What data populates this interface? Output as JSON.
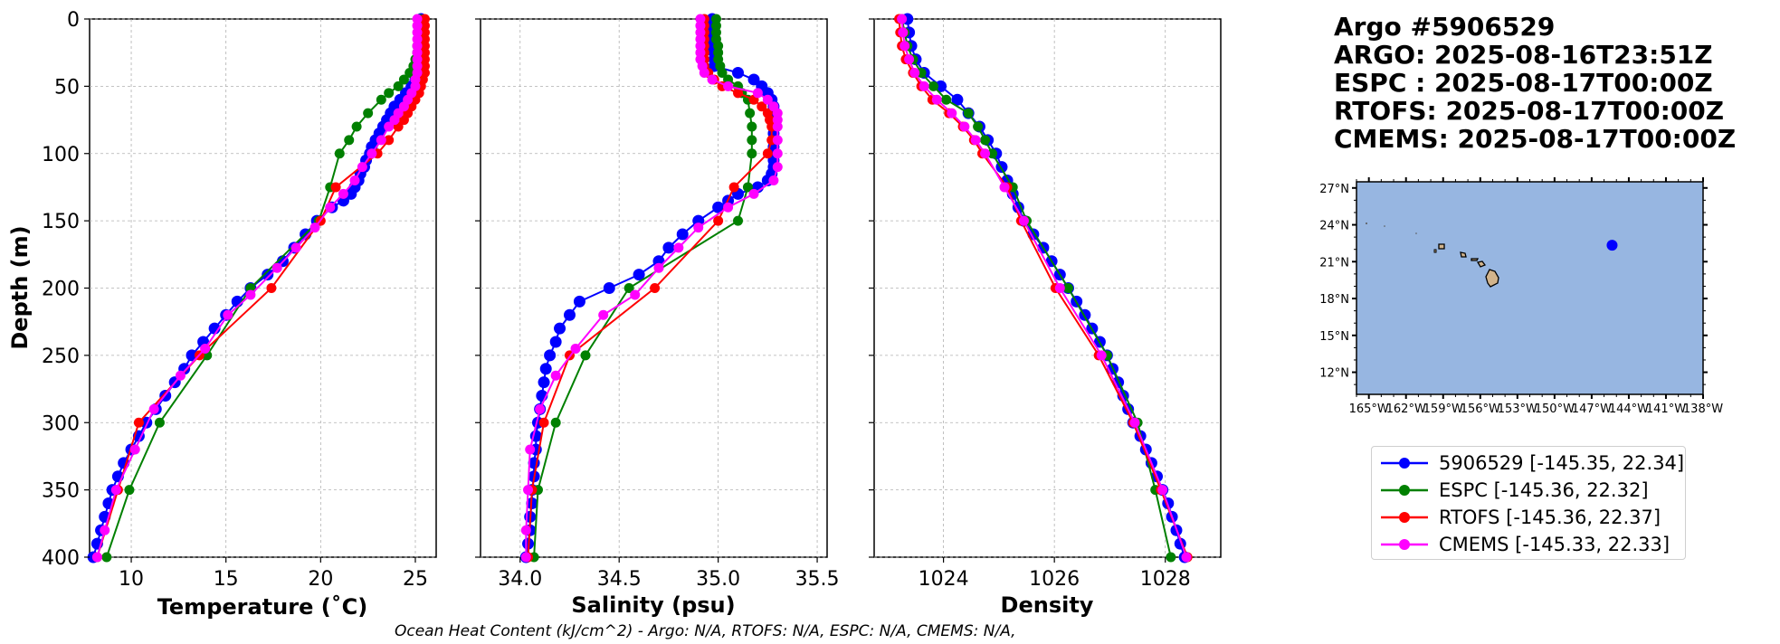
{
  "header": {
    "float_title": "Argo #5906529",
    "argo_time": "ARGO: 2025-08-16T23:51Z",
    "espc_time": "ESPC : 2025-08-17T00:00Z",
    "rtofs_time": "RTOFS: 2025-08-17T00:00Z",
    "cmems_time": "CMEMS: 2025-08-17T00:00Z"
  },
  "footer": "Ocean Heat Content (kJ/cm^2) - Argo: N/A,  RTOFS: N/A,  ESPC: N/A,  CMEMS: N/A,",
  "legend": [
    {
      "label": "5906529 [-145.35, 22.34]",
      "color": "#0000ff"
    },
    {
      "label": "ESPC [-145.36, 22.32]",
      "color": "#008000"
    },
    {
      "label": "RTOFS [-145.36, 22.37]",
      "color": "#ff0000"
    },
    {
      "label": "CMEMS [-145.33, 22.33]",
      "color": "#ff00ff"
    }
  ],
  "colors": {
    "argo": "#0000ff",
    "espc": "#008000",
    "rtofs": "#ff0000",
    "cmems": "#ff00ff",
    "ocean": "#97b6e1",
    "land": "#d2b48c",
    "grid": "#b0b0b0"
  },
  "chart_data": [
    {
      "type": "line",
      "xlabel": "Temperature (˚C)",
      "ylabel": "Depth (m)",
      "xlim": [
        7.8,
        26.1
      ],
      "ylim": [
        400,
        0
      ],
      "xticks": [
        10,
        15,
        20,
        25
      ],
      "yticks": [
        0,
        50,
        100,
        150,
        200,
        250,
        300,
        350,
        400
      ],
      "grid": true,
      "series": [
        {
          "name": "5906529",
          "depth": [
            0,
            5,
            10,
            15,
            20,
            25,
            30,
            35,
            40,
            45,
            50,
            55,
            60,
            65,
            70,
            75,
            80,
            85,
            90,
            95,
            100,
            105,
            110,
            115,
            120,
            125,
            130,
            135,
            140,
            150,
            160,
            170,
            180,
            190,
            200,
            210,
            220,
            230,
            240,
            250,
            260,
            270,
            280,
            290,
            300,
            310,
            320,
            330,
            340,
            350,
            360,
            370,
            380,
            390,
            400
          ],
          "values": [
            25.3,
            25.3,
            25.3,
            25.3,
            25.3,
            25.2,
            25.2,
            25.2,
            25.1,
            25.0,
            24.8,
            24.5,
            24.2,
            23.9,
            23.7,
            23.5,
            23.3,
            23.1,
            22.9,
            22.7,
            22.6,
            22.4,
            22.3,
            22.1,
            22.0,
            21.8,
            21.6,
            21.2,
            20.6,
            19.8,
            19.2,
            18.6,
            18.0,
            17.2,
            16.3,
            15.6,
            15.0,
            14.4,
            13.8,
            13.2,
            12.8,
            12.3,
            11.8,
            11.3,
            10.8,
            10.4,
            10.0,
            9.6,
            9.3,
            9.0,
            8.8,
            8.6,
            8.4,
            8.2,
            8.0
          ]
        },
        {
          "name": "ESPC",
          "depth": [
            0,
            5,
            10,
            15,
            20,
            25,
            30,
            35,
            40,
            45,
            50,
            55,
            60,
            70,
            80,
            90,
            100,
            125,
            150,
            200,
            250,
            300,
            350,
            400
          ],
          "values": [
            25.2,
            25.2,
            25.2,
            25.2,
            25.1,
            25.1,
            25.0,
            24.9,
            24.7,
            24.4,
            24.1,
            23.6,
            23.2,
            22.5,
            21.9,
            21.5,
            21.0,
            20.5,
            19.9,
            16.3,
            14.0,
            11.5,
            9.9,
            8.7
          ]
        },
        {
          "name": "RTOFS",
          "depth": [
            0,
            5,
            10,
            15,
            20,
            25,
            30,
            35,
            40,
            45,
            50,
            55,
            60,
            65,
            70,
            75,
            80,
            90,
            100,
            125,
            150,
            200,
            250,
            300,
            350,
            400
          ],
          "values": [
            25.5,
            25.5,
            25.5,
            25.5,
            25.5,
            25.5,
            25.5,
            25.5,
            25.5,
            25.4,
            25.3,
            25.2,
            25.0,
            24.8,
            24.6,
            24.4,
            24.1,
            23.6,
            23.0,
            20.8,
            20.0,
            17.4,
            13.6,
            10.4,
            9.3,
            8.2
          ]
        },
        {
          "name": "CMEMS",
          "depth": [
            0,
            5,
            10,
            15,
            20,
            25,
            30,
            35,
            40,
            45,
            50,
            55,
            60,
            65,
            70,
            75,
            80,
            90,
            100,
            110,
            120,
            130,
            140,
            155,
            170,
            185,
            205,
            220,
            245,
            265,
            290,
            320,
            350,
            380,
            400
          ],
          "values": [
            25.1,
            25.1,
            25.1,
            25.1,
            25.1,
            25.1,
            25.1,
            25.1,
            25.1,
            25.0,
            25.0,
            24.8,
            24.6,
            24.4,
            24.1,
            23.9,
            23.6,
            23.2,
            22.7,
            22.2,
            21.8,
            21.2,
            20.5,
            19.7,
            18.7,
            17.7,
            16.3,
            15.1,
            13.9,
            12.6,
            11.2,
            10.2,
            9.2,
            8.6,
            8.2
          ]
        }
      ]
    },
    {
      "type": "line",
      "xlabel": "Salinity (psu)",
      "xlim": [
        33.8,
        35.55
      ],
      "ylim": [
        400,
        0
      ],
      "xticks": [
        34.0,
        34.5,
        35.0,
        35.5
      ],
      "xticklabels": [
        "34.0",
        "34.5",
        "35.0",
        "35.5"
      ],
      "grid": true,
      "series": [
        {
          "name": "5906529",
          "depth": [
            0,
            5,
            10,
            15,
            20,
            25,
            30,
            35,
            40,
            45,
            50,
            55,
            60,
            65,
            70,
            75,
            80,
            85,
            90,
            95,
            100,
            105,
            110,
            115,
            120,
            125,
            130,
            135,
            140,
            150,
            160,
            170,
            180,
            190,
            200,
            210,
            220,
            230,
            240,
            250,
            260,
            270,
            280,
            290,
            300,
            310,
            320,
            330,
            340,
            350,
            360,
            370,
            380,
            390,
            400
          ],
          "values": [
            34.97,
            34.97,
            34.97,
            34.97,
            34.97,
            34.98,
            34.98,
            34.98,
            35.1,
            35.18,
            35.22,
            35.25,
            35.27,
            35.28,
            35.28,
            35.28,
            35.28,
            35.28,
            35.28,
            35.28,
            35.28,
            35.28,
            35.28,
            35.27,
            35.25,
            35.2,
            35.1,
            35.05,
            35.0,
            34.9,
            34.82,
            34.75,
            34.7,
            34.6,
            34.45,
            34.3,
            34.25,
            34.2,
            34.18,
            34.15,
            34.13,
            34.12,
            34.11,
            34.1,
            34.09,
            34.08,
            34.08,
            34.07,
            34.07,
            34.06,
            34.06,
            34.05,
            34.05,
            34.04,
            34.03
          ]
        },
        {
          "name": "ESPC",
          "depth": [
            0,
            5,
            10,
            15,
            20,
            25,
            30,
            35,
            40,
            45,
            50,
            55,
            60,
            70,
            80,
            90,
            100,
            125,
            150,
            200,
            250,
            300,
            350,
            400
          ],
          "values": [
            34.99,
            34.99,
            34.99,
            34.99,
            35.0,
            35.0,
            35.0,
            35.01,
            35.02,
            35.05,
            35.1,
            35.12,
            35.15,
            35.16,
            35.17,
            35.17,
            35.17,
            35.15,
            35.1,
            34.55,
            34.33,
            34.18,
            34.09,
            34.07
          ]
        },
        {
          "name": "RTOFS",
          "depth": [
            0,
            5,
            10,
            15,
            20,
            25,
            30,
            35,
            40,
            45,
            50,
            55,
            60,
            65,
            70,
            75,
            80,
            90,
            100,
            125,
            150,
            200,
            250,
            300,
            350,
            400
          ],
          "values": [
            34.93,
            34.93,
            34.93,
            34.93,
            34.93,
            34.93,
            34.93,
            34.93,
            34.95,
            34.98,
            35.02,
            35.1,
            35.18,
            35.22,
            35.25,
            35.26,
            35.27,
            35.27,
            35.25,
            35.08,
            35.0,
            34.68,
            34.25,
            34.12,
            34.06,
            34.04
          ]
        },
        {
          "name": "CMEMS",
          "depth": [
            0,
            5,
            10,
            15,
            20,
            25,
            30,
            35,
            40,
            45,
            50,
            55,
            60,
            65,
            70,
            75,
            80,
            90,
            100,
            110,
            120,
            130,
            140,
            155,
            170,
            185,
            205,
            220,
            245,
            265,
            290,
            320,
            350,
            380,
            400
          ],
          "values": [
            34.91,
            34.91,
            34.91,
            34.91,
            34.91,
            34.91,
            34.91,
            34.92,
            34.93,
            34.97,
            35.05,
            35.2,
            35.25,
            35.28,
            35.3,
            35.3,
            35.3,
            35.3,
            35.3,
            35.3,
            35.28,
            35.18,
            35.05,
            34.9,
            34.8,
            34.7,
            34.58,
            34.42,
            34.28,
            34.18,
            34.1,
            34.05,
            34.04,
            34.03,
            34.03
          ]
        }
      ]
    },
    {
      "type": "line",
      "xlabel": "Density",
      "xlim": [
        1022.75,
        1029.0
      ],
      "ylim": [
        400,
        0
      ],
      "xticks": [
        1024,
        1026,
        1028
      ],
      "grid": true,
      "series": [
        {
          "name": "5906529",
          "depth": [
            0,
            10,
            20,
            30,
            40,
            50,
            60,
            70,
            80,
            90,
            100,
            110,
            120,
            130,
            140,
            150,
            160,
            170,
            180,
            190,
            200,
            210,
            220,
            230,
            240,
            250,
            260,
            270,
            280,
            290,
            300,
            310,
            320,
            330,
            340,
            350,
            360,
            370,
            380,
            390,
            400
          ],
          "values": [
            1023.35,
            1023.38,
            1023.42,
            1023.5,
            1023.65,
            1023.95,
            1024.25,
            1024.45,
            1024.65,
            1024.8,
            1024.95,
            1025.05,
            1025.15,
            1025.25,
            1025.35,
            1025.45,
            1025.62,
            1025.8,
            1025.95,
            1026.1,
            1026.25,
            1026.4,
            1026.55,
            1026.68,
            1026.82,
            1026.95,
            1027.05,
            1027.15,
            1027.24,
            1027.33,
            1027.42,
            1027.55,
            1027.65,
            1027.75,
            1027.85,
            1027.95,
            1028.05,
            1028.12,
            1028.2,
            1028.27,
            1028.35
          ]
        },
        {
          "name": "ESPC",
          "depth": [
            0,
            10,
            20,
            30,
            40,
            50,
            60,
            70,
            80,
            90,
            100,
            125,
            150,
            200,
            250,
            300,
            350,
            400
          ],
          "values": [
            1023.25,
            1023.3,
            1023.35,
            1023.45,
            1023.6,
            1023.82,
            1024.05,
            1024.45,
            1024.62,
            1024.75,
            1024.88,
            1025.25,
            1025.5,
            1026.25,
            1026.95,
            1027.5,
            1027.82,
            1028.1
          ]
        },
        {
          "name": "RTOFS",
          "depth": [
            0,
            10,
            20,
            30,
            40,
            50,
            60,
            70,
            80,
            90,
            100,
            125,
            150,
            200,
            250,
            300,
            350,
            400
          ],
          "values": [
            1023.2,
            1023.22,
            1023.25,
            1023.32,
            1023.45,
            1023.6,
            1023.8,
            1024.1,
            1024.35,
            1024.55,
            1024.7,
            1025.15,
            1025.4,
            1026.02,
            1026.8,
            1027.42,
            1027.92,
            1028.4
          ]
        },
        {
          "name": "CMEMS",
          "depth": [
            0,
            10,
            20,
            30,
            40,
            50,
            60,
            70,
            80,
            90,
            100,
            125,
            150,
            200,
            250,
            300,
            350,
            400
          ],
          "values": [
            1023.25,
            1023.27,
            1023.3,
            1023.38,
            1023.48,
            1023.65,
            1023.88,
            1024.15,
            1024.38,
            1024.58,
            1024.75,
            1025.1,
            1025.45,
            1026.1,
            1026.85,
            1027.45,
            1027.95,
            1028.38
          ]
        }
      ]
    },
    {
      "type": "map",
      "lon_range": [
        -166.0,
        -138.0
      ],
      "lat_range": [
        10.2,
        27.5
      ],
      "xticks": [
        -165,
        -162,
        -159,
        -156,
        -153,
        -150,
        -147,
        -144,
        -141,
        -138
      ],
      "xticklabels": [
        "165°W",
        "162°W",
        "159°W",
        "156°W",
        "153°W",
        "150°W",
        "147°W",
        "144°W",
        "141°W",
        "138°W"
      ],
      "yticks": [
        12,
        15,
        18,
        21,
        24,
        27
      ],
      "yticklabels": [
        "12°N",
        "15°N",
        "18°N",
        "21°N",
        "24°N",
        "27°N"
      ],
      "float_position": [
        -145.35,
        22.34
      ]
    }
  ]
}
